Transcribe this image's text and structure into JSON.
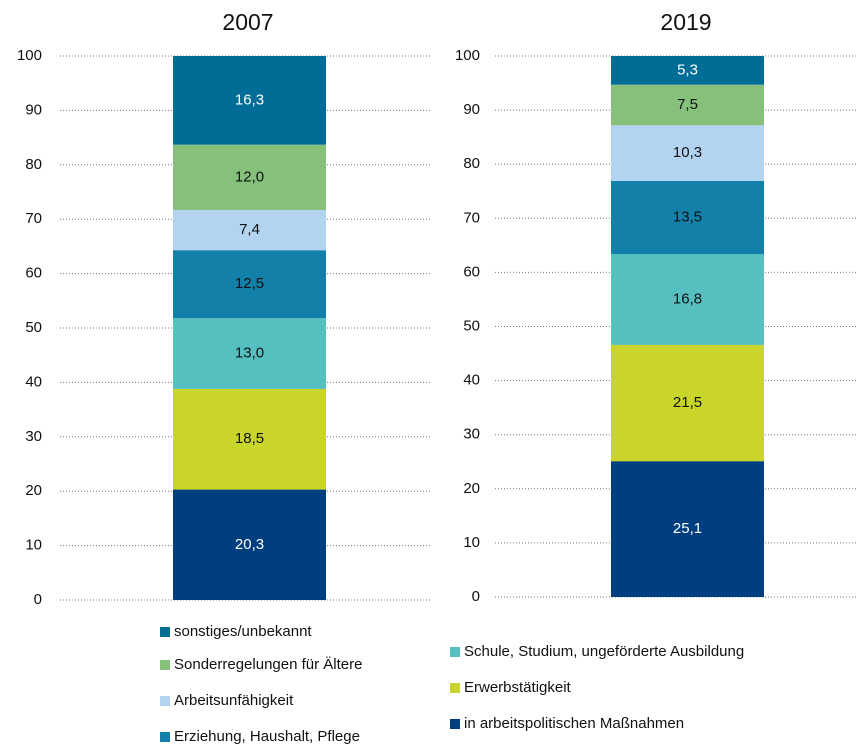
{
  "chart_data": {
    "type": "bar",
    "stacked": true,
    "categories": [
      "2007",
      "2019"
    ],
    "ylim": [
      0,
      100
    ],
    "yticks": [
      0,
      10,
      20,
      30,
      40,
      50,
      60,
      70,
      80,
      90,
      100
    ],
    "grid": true,
    "series": [
      {
        "name": "in arbeitspolitischen Maßnahmen",
        "color": "#003f7f",
        "values": [
          20.3,
          25.1
        ],
        "value_labels": [
          "20,3",
          "25,1"
        ]
      },
      {
        "name": "Erwerbstätigkeit",
        "color": "#c9d52a",
        "values": [
          18.5,
          21.5
        ],
        "value_labels": [
          "18,5",
          "21,5"
        ]
      },
      {
        "name": "Schule, Studium, ungeförderte Ausbildung",
        "color": "#56bfbf",
        "values": [
          13.0,
          16.8
        ],
        "value_labels": [
          "13,0",
          "16,8"
        ]
      },
      {
        "name": "Erziehung, Haushalt, Pflege",
        "color": "#1280a8",
        "values": [
          12.5,
          13.5
        ],
        "value_labels": [
          "12,5",
          "13,5"
        ]
      },
      {
        "name": "Arbeitsunfähigkeit",
        "color": "#b3d4f0",
        "values": [
          7.4,
          10.3
        ],
        "value_labels": [
          "7,4",
          "10,3"
        ]
      },
      {
        "name": "Sonderregelungen für Ältere",
        "color": "#85c17a",
        "values": [
          12.0,
          7.5
        ],
        "value_labels": [
          "12,0",
          "7,5"
        ]
      },
      {
        "name": "sonstiges/unbekannt",
        "color": "#006d96",
        "values": [
          16.3,
          5.3
        ],
        "value_labels": [
          "16,3",
          "5,3"
        ]
      }
    ]
  }
}
